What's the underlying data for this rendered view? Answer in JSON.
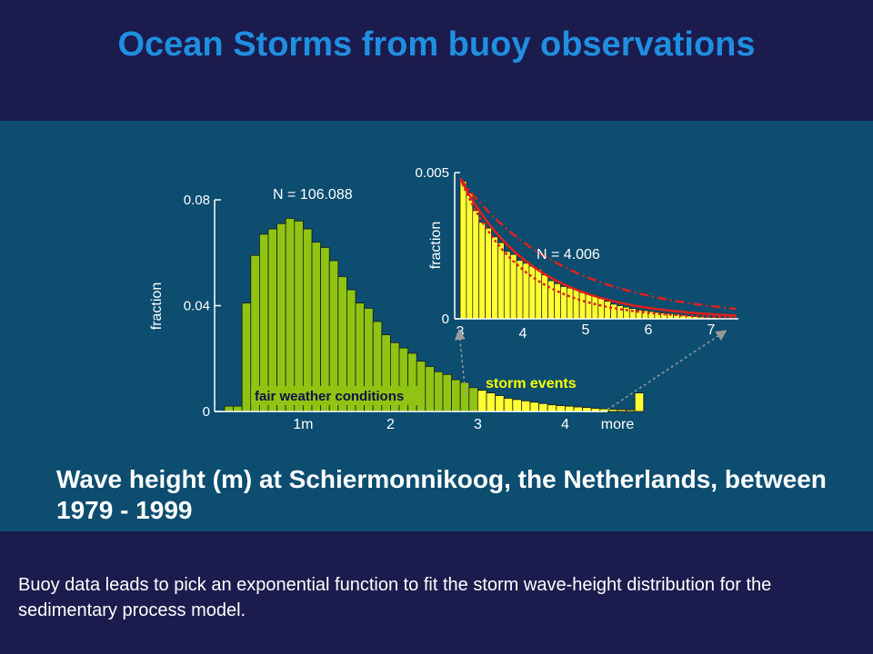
{
  "slide": {
    "title": "Ocean Storms from buoy observations",
    "caption": "Wave height (m) at Schiermonnikoog, the Netherlands, between 1979 - 1999",
    "footer": "Buoy data leads to pick an exponential function to fit the storm wave-height distribution for the sedimentary process model."
  },
  "colors": {
    "background": "#1b1b4d",
    "panel": "#0c4d70",
    "title": "#1f8fe0",
    "fair_bars": "#8fc412",
    "storm_bars": "#ffff33",
    "fit_lines": "#e0201a",
    "label_yellow": "#ffff00",
    "arrows": "#9a9a9a"
  },
  "chart_data": [
    {
      "type": "bar",
      "ylabel": "fraction",
      "yticks": [
        "0",
        "0.04",
        "0.08"
      ],
      "ylim": [
        0,
        0.08
      ],
      "xticks": [
        {
          "label": "1m",
          "x": 1
        },
        {
          "label": "2",
          "x": 2
        },
        {
          "label": "3",
          "x": 3
        },
        {
          "label": "4",
          "x": 4
        },
        {
          "label": "more",
          "x": 4.6
        }
      ],
      "annotations": {
        "n": "N = 106.088",
        "fair": "fair weather conditions",
        "storm": "storm events"
      },
      "bin_width": 0.1,
      "x_start": 0.1,
      "storm_from": 3.0,
      "values": [
        0.002,
        0.002,
        0.041,
        0.059,
        0.067,
        0.069,
        0.071,
        0.073,
        0.072,
        0.069,
        0.064,
        0.062,
        0.057,
        0.051,
        0.046,
        0.041,
        0.039,
        0.034,
        0.029,
        0.026,
        0.024,
        0.022,
        0.019,
        0.017,
        0.015,
        0.014,
        0.012,
        0.011,
        0.009,
        0.008,
        0.007,
        0.006,
        0.005,
        0.0045,
        0.004,
        0.0035,
        0.003,
        0.0025,
        0.0022,
        0.002,
        0.0017,
        0.0015,
        0.0012,
        0.001,
        0.0008,
        0.0007,
        0.0006,
        0.007
      ]
    },
    {
      "type": "bar",
      "ylabel": "fraction",
      "yticks": [
        "0",
        "0.005"
      ],
      "ylim": [
        0,
        0.005
      ],
      "xticks": [
        "3",
        "4",
        "5",
        "6",
        "7"
      ],
      "xlim": [
        3.0,
        7.4
      ],
      "annotations": {
        "n": "N = 4.006"
      },
      "bin_width": 0.1,
      "x_start": 3.0,
      "values": [
        0.0047,
        0.0043,
        0.0037,
        0.0033,
        0.0031,
        0.0028,
        0.0026,
        0.0023,
        0.0022,
        0.002,
        0.0019,
        0.0018,
        0.0017,
        0.0015,
        0.0013,
        0.0012,
        0.0011,
        0.00105,
        0.001,
        0.0009,
        0.00085,
        0.0008,
        0.0007,
        0.0006,
        0.0005,
        0.00045,
        0.0004,
        0.00035,
        0.0003,
        0.00028,
        0.00025,
        0.00022,
        0.0002,
        0.00018,
        0.00015,
        0.00012,
        0.0001,
        8e-05,
        6e-05,
        5e-05,
        4e-05,
        3e-05,
        2e-05,
        1e-05
      ],
      "fit_curves": [
        {
          "style": "solid",
          "y0": 0.0048,
          "decay": 0.85
        },
        {
          "style": "dashdot",
          "y0": 0.0048,
          "decay": 0.6
        },
        {
          "style": "dotted",
          "y0": 0.0048,
          "decay": 1.05
        }
      ]
    }
  ]
}
